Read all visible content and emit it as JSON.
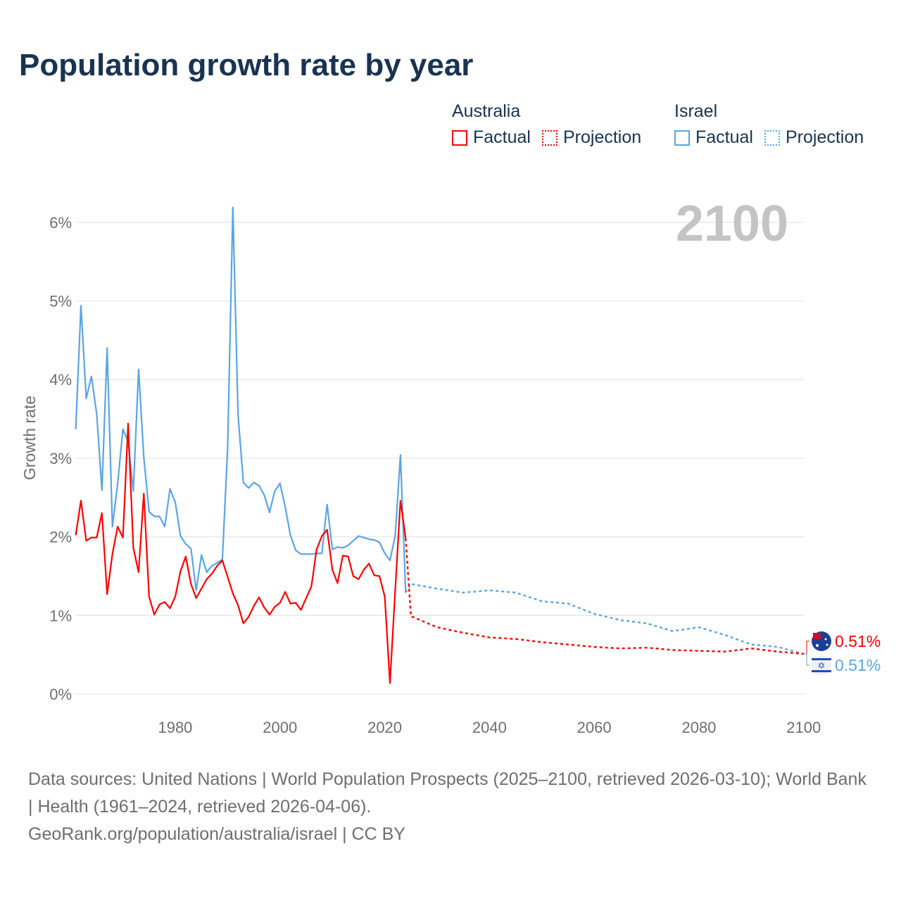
{
  "title": "Population growth rate by year",
  "legend": {
    "groups": [
      {
        "country": "Australia",
        "factual_label": "Factual",
        "projection_label": "Projection",
        "color": "#ff0000"
      },
      {
        "country": "Israel",
        "factual_label": "Factual",
        "projection_label": "Projection",
        "color": "#5ba4e6"
      }
    ]
  },
  "footer": {
    "sources": "Data sources: United Nations | World Population Prospects (2025–2100, retrieved 2026-03-10); World Bank | Health (1961–2024, retrieved 2026-04-06).",
    "attribution": "GeoRank.org/population/australia/israel | CC BY"
  },
  "chart_data": {
    "type": "line",
    "title": "Population growth rate by year",
    "ylabel": "Growth rate",
    "xlabel": "",
    "xlim": [
      1961,
      2100
    ],
    "ylim": [
      0,
      6.2
    ],
    "x_ticks": [
      1980,
      2000,
      2020,
      2040,
      2060,
      2080,
      2100
    ],
    "y_ticks": [
      0,
      1,
      2,
      3,
      4,
      5,
      6
    ],
    "y_tick_labels": [
      "0%",
      "1%",
      "2%",
      "3%",
      "4%",
      "5%",
      "6%"
    ],
    "grid": true,
    "year_label": "2100",
    "series": [
      {
        "name": "Australia",
        "color": "#ff0000",
        "end_label": "0.51%",
        "factual_start": 1961,
        "factual": [
          2.02,
          2.46,
          1.95,
          1.99,
          1.99,
          2.3,
          1.27,
          1.78,
          2.13,
          1.99,
          3.44,
          1.86,
          1.55,
          2.55,
          1.24,
          1.01,
          1.14,
          1.17,
          1.09,
          1.24,
          1.56,
          1.75,
          1.4,
          1.22,
          1.34,
          1.46,
          1.53,
          1.63,
          1.7,
          1.49,
          1.28,
          1.13,
          0.9,
          0.98,
          1.12,
          1.23,
          1.1,
          1.01,
          1.11,
          1.16,
          1.3,
          1.15,
          1.16,
          1.07,
          1.22,
          1.37,
          1.84,
          2.01,
          2.09,
          1.58,
          1.41,
          1.76,
          1.75,
          1.5,
          1.46,
          1.58,
          1.66,
          1.51,
          1.5,
          1.24,
          0.14,
          1.31,
          2.46,
          1.98
        ],
        "projection_years": [
          2024,
          2025,
          2030,
          2035,
          2040,
          2045,
          2050,
          2055,
          2060,
          2065,
          2070,
          2075,
          2080,
          2085,
          2090,
          2095,
          2100
        ],
        "projection": [
          1.98,
          0.99,
          0.85,
          0.78,
          0.72,
          0.7,
          0.66,
          0.63,
          0.6,
          0.58,
          0.59,
          0.56,
          0.55,
          0.54,
          0.58,
          0.54,
          0.51
        ]
      },
      {
        "name": "Israel",
        "color": "#5ba4e6",
        "end_label": "0.51%",
        "factual_start": 1961,
        "factual": [
          3.37,
          4.94,
          3.76,
          4.04,
          3.56,
          2.59,
          4.4,
          2.13,
          2.67,
          3.37,
          3.21,
          2.58,
          4.13,
          3.01,
          2.32,
          2.26,
          2.26,
          2.13,
          2.61,
          2.44,
          2.01,
          1.91,
          1.85,
          1.32,
          1.77,
          1.55,
          1.63,
          1.67,
          1.71,
          3.13,
          6.19,
          3.55,
          2.69,
          2.62,
          2.69,
          2.65,
          2.53,
          2.31,
          2.58,
          2.68,
          2.38,
          2.02,
          1.83,
          1.78,
          1.78,
          1.78,
          1.79,
          1.79,
          2.41,
          1.84,
          1.87,
          1.86,
          1.89,
          1.95,
          2.01,
          1.99,
          1.97,
          1.96,
          1.93,
          1.79,
          1.7,
          2.01,
          3.04,
          1.29
        ],
        "projection_years": [
          2024,
          2025,
          2030,
          2035,
          2040,
          2045,
          2050,
          2055,
          2060,
          2065,
          2070,
          2075,
          2080,
          2085,
          2090,
          2095,
          2100
        ],
        "projection": [
          1.29,
          1.4,
          1.34,
          1.29,
          1.32,
          1.29,
          1.18,
          1.15,
          1.02,
          0.94,
          0.9,
          0.8,
          0.85,
          0.75,
          0.63,
          0.6,
          0.51
        ]
      }
    ]
  }
}
